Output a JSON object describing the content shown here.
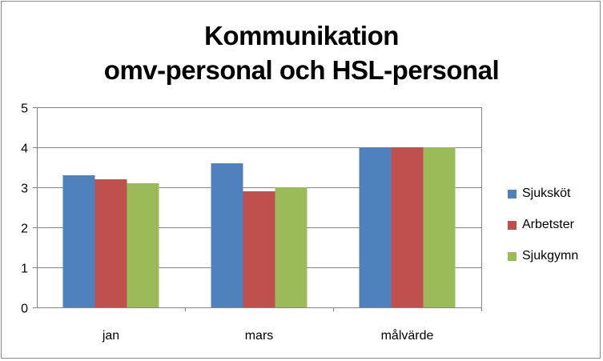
{
  "chart_data": {
    "type": "bar",
    "title_lines": [
      "Kommunikation",
      "omv-personal och HSL-personal"
    ],
    "categories": [
      "jan",
      "mars",
      "målvärde"
    ],
    "series": [
      {
        "name": "Sjuksköt",
        "color": "#4F81BD",
        "values": [
          3.3,
          3.6,
          4.0
        ]
      },
      {
        "name": "Arbetster",
        "color": "#C0504D",
        "values": [
          3.2,
          2.9,
          4.0
        ]
      },
      {
        "name": "Sjukgymn",
        "color": "#9BBB59",
        "values": [
          3.1,
          3.0,
          4.0
        ]
      }
    ],
    "ylim": [
      0,
      5
    ],
    "yticks": [
      "0",
      "1",
      "2",
      "3",
      "4",
      "5"
    ],
    "grid": true,
    "legend_position": "right"
  }
}
